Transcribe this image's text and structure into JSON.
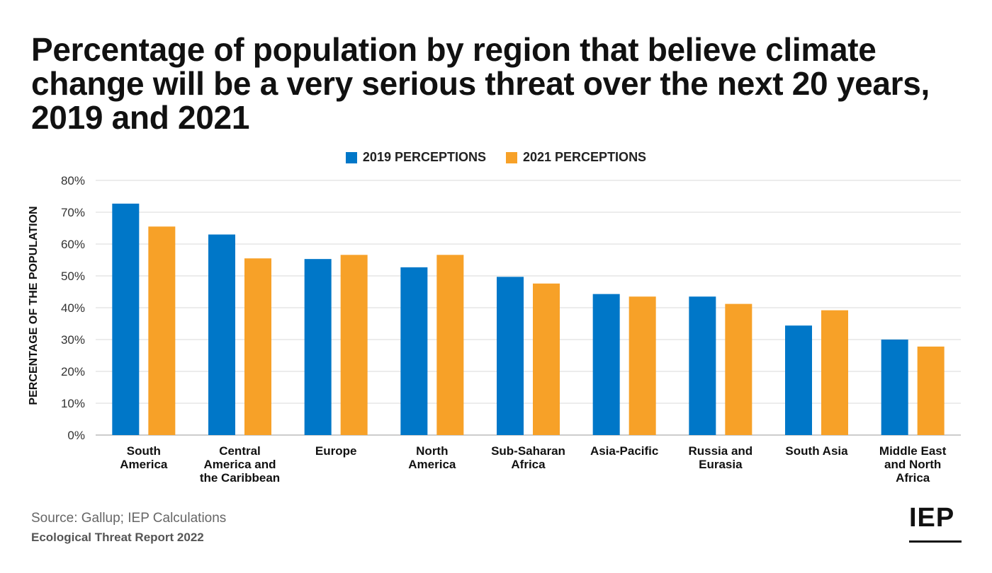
{
  "title": "Percentage of population by region that believe climate change will be a very serious threat over the next 20 years, 2019 and 2021",
  "footer": {
    "source": "Source: Gallup; IEP Calculations",
    "report": "Ecological Threat Report 2022",
    "logo": "IEP"
  },
  "colors": {
    "series2019": "#0077C8",
    "series2021": "#F7A128",
    "grid": "#d9d9d9"
  },
  "chart_data": {
    "type": "bar",
    "ylabel": "PERCENTAGE OF THE POPULATION",
    "ylim": [
      0,
      80
    ],
    "yticks": [
      "0%",
      "10%",
      "20%",
      "30%",
      "40%",
      "50%",
      "60%",
      "70%",
      "80%"
    ],
    "grid": true,
    "legend_position": "top-center",
    "categories": [
      [
        "South",
        "America"
      ],
      [
        "Central",
        "America and",
        "the Caribbean"
      ],
      [
        "Europe"
      ],
      [
        "North",
        "America"
      ],
      [
        "Sub-Saharan",
        "Africa"
      ],
      [
        "Asia-Pacific"
      ],
      [
        "Russia and",
        "Eurasia"
      ],
      [
        "South Asia"
      ],
      [
        "Middle East",
        "and North",
        "Africa"
      ]
    ],
    "series": [
      {
        "name": "2019 PERCEPTIONS",
        "values": [
          72.7,
          63.0,
          55.3,
          52.7,
          49.7,
          44.3,
          43.5,
          34.4,
          30.0
        ]
      },
      {
        "name": "2021 PERCEPTIONS",
        "values": [
          65.5,
          55.5,
          56.6,
          56.6,
          47.6,
          43.5,
          41.2,
          39.2,
          27.8
        ]
      }
    ]
  }
}
